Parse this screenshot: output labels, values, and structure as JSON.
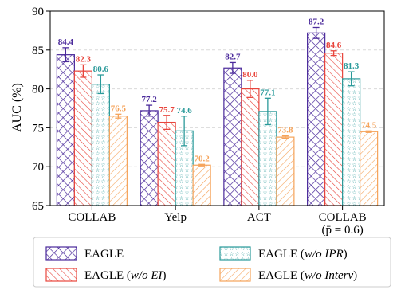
{
  "chart_data": {
    "type": "bar",
    "ylabel": "AUC (%)",
    "ylim": [
      65,
      90
    ],
    "yticks": [
      65,
      70,
      75,
      80,
      85,
      90
    ],
    "grid": true,
    "legend_position": "bottom",
    "categories": [
      {
        "line1": "COLLAB",
        "line2": ""
      },
      {
        "line1": "Yelp",
        "line2": ""
      },
      {
        "line1": "ACT",
        "line2": ""
      },
      {
        "line1": "COLLAB",
        "line2": "(p̄ = 0.6)"
      }
    ],
    "series": [
      {
        "name": "EAGLE",
        "name_suffix": "",
        "color": "#4b2a9b",
        "hatch": "crosshatch",
        "values": [
          84.4,
          77.2,
          82.7,
          87.2
        ],
        "labels": [
          "84.4",
          "77.2",
          "82.7",
          "87.2"
        ],
        "errors": [
          0.9,
          0.7,
          0.7,
          0.7
        ]
      },
      {
        "name": "EAGLE (",
        "name_suffix": "w/o EI",
        "color": "#e8453c",
        "hatch": "diagonal",
        "values": [
          82.3,
          75.7,
          80.0,
          84.6
        ],
        "labels": [
          "82.3",
          "75.7",
          "80.0",
          "84.6"
        ],
        "errors": [
          0.8,
          0.9,
          1.1,
          0.3
        ]
      },
      {
        "name": "EAGLE (",
        "name_suffix": "w/o IPR",
        "color": "#2a9a9a",
        "hatch": "stars",
        "values": [
          80.6,
          74.6,
          77.1,
          81.3
        ],
        "labels": [
          "80.6",
          "74.6",
          "77.1",
          "81.3"
        ],
        "errors": [
          1.2,
          1.9,
          1.7,
          0.9
        ]
      },
      {
        "name": "EAGLE (",
        "name_suffix": "w/o Interv",
        "color": "#f5a35a",
        "hatch": "backdiagonal",
        "values": [
          76.5,
          70.2,
          73.8,
          74.5
        ],
        "labels": [
          "76.5",
          "70.2",
          "73.8",
          "74.5"
        ],
        "errors": [
          0.25,
          0.1,
          0.15,
          0.1
        ]
      }
    ]
  }
}
